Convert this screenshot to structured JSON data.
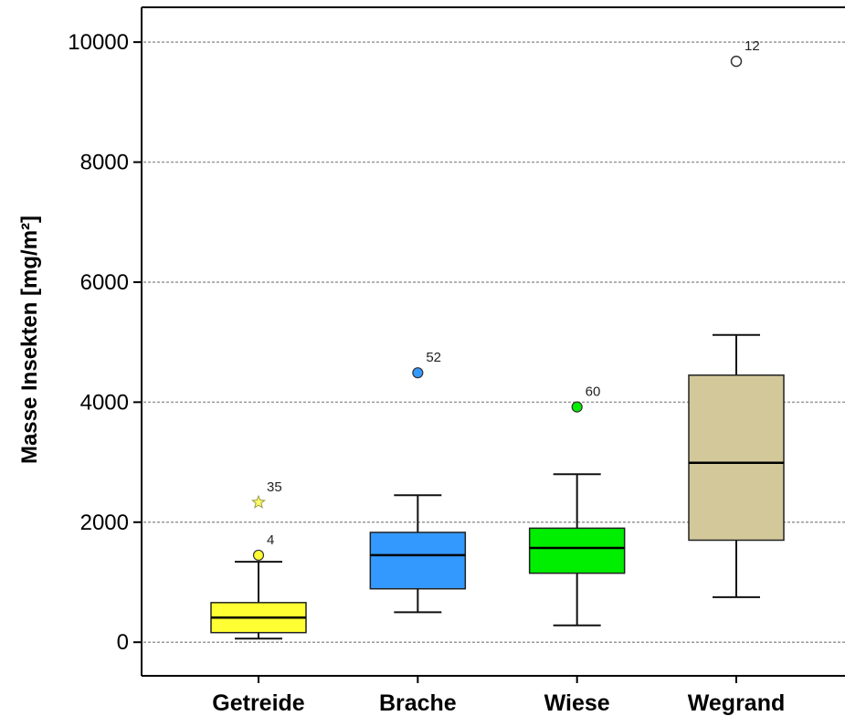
{
  "chart_data": {
    "type": "boxplot",
    "ylabel": "Masse Insekten [mg/m²]",
    "xlabel": "",
    "title": "",
    "ylim": [
      -560,
      10580
    ],
    "yticks": [
      0,
      2000,
      4000,
      6000,
      8000,
      10000
    ],
    "grid": true,
    "categories": [
      "Getreide",
      "Brache",
      "Wiese",
      "Wegrand"
    ],
    "boxes": [
      {
        "category": "Getreide",
        "color": "#ffff33",
        "whisker_low": 60,
        "q1": 160,
        "median": 410,
        "q3": 660,
        "whisker_high": 1340,
        "outliers": [
          {
            "value": 1450,
            "label": "4",
            "marker": "circle"
          },
          {
            "value": 2330,
            "label": "35",
            "marker": "star"
          }
        ]
      },
      {
        "category": "Brache",
        "color": "#3399ff",
        "whisker_low": 500,
        "q1": 890,
        "median": 1450,
        "q3": 1830,
        "whisker_high": 2450,
        "outliers": [
          {
            "value": 4490,
            "label": "52",
            "marker": "circle"
          }
        ]
      },
      {
        "category": "Wiese",
        "color": "#00ee00",
        "whisker_low": 280,
        "q1": 1150,
        "median": 1570,
        "q3": 1900,
        "whisker_high": 2800,
        "outliers": [
          {
            "value": 3920,
            "label": "60",
            "marker": "circle"
          }
        ]
      },
      {
        "category": "Wegrand",
        "color": "#d2c89a",
        "whisker_low": 750,
        "q1": 1700,
        "median": 2990,
        "q3": 4450,
        "whisker_high": 5120,
        "outliers": [
          {
            "value": 9680,
            "label": "12",
            "marker": "open-circle"
          }
        ]
      }
    ]
  }
}
